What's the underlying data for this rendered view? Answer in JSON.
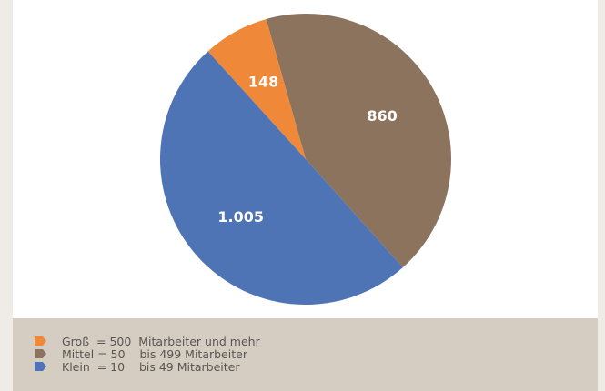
{
  "chart_data": {
    "type": "pie",
    "series": [
      {
        "name": "Groß  = 500  Mitarbeiter und mehr",
        "color": "#f0883a",
        "values": [
          148
        ],
        "value_labels": [
          "148"
        ]
      },
      {
        "name": "Mittel = 50    bis 499 Mitarbeiter",
        "color": "#8c735e",
        "values": [
          860
        ],
        "value_labels": [
          "860"
        ]
      },
      {
        "name": "Klein  = 10    bis 49 Mitarbeiter",
        "color": "#4f74b5",
        "values": [
          1005
        ],
        "value_labels": [
          "1.005"
        ]
      }
    ]
  }
}
